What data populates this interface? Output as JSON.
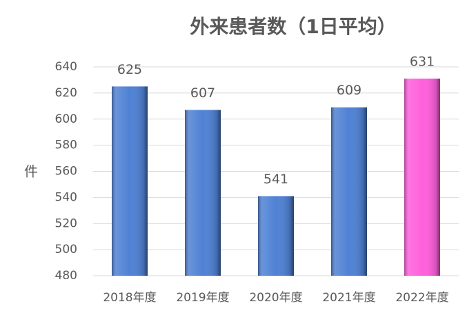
{
  "chart_data": {
    "type": "bar",
    "title": "外来患者数（1日平均）",
    "y_label": "件",
    "categories": [
      "2018年度",
      "2019年度",
      "2020年度",
      "2021年度",
      "2022年度"
    ],
    "values": [
      625,
      607,
      541,
      609,
      631
    ],
    "colors": [
      "#4f81d4",
      "#4f81d4",
      "#4f81d4",
      "#4f81d4",
      "#ff5fdc"
    ],
    "ylim": [
      480,
      640
    ],
    "yticks": [
      480,
      500,
      520,
      540,
      560,
      580,
      600,
      620,
      640
    ],
    "grid": true
  }
}
